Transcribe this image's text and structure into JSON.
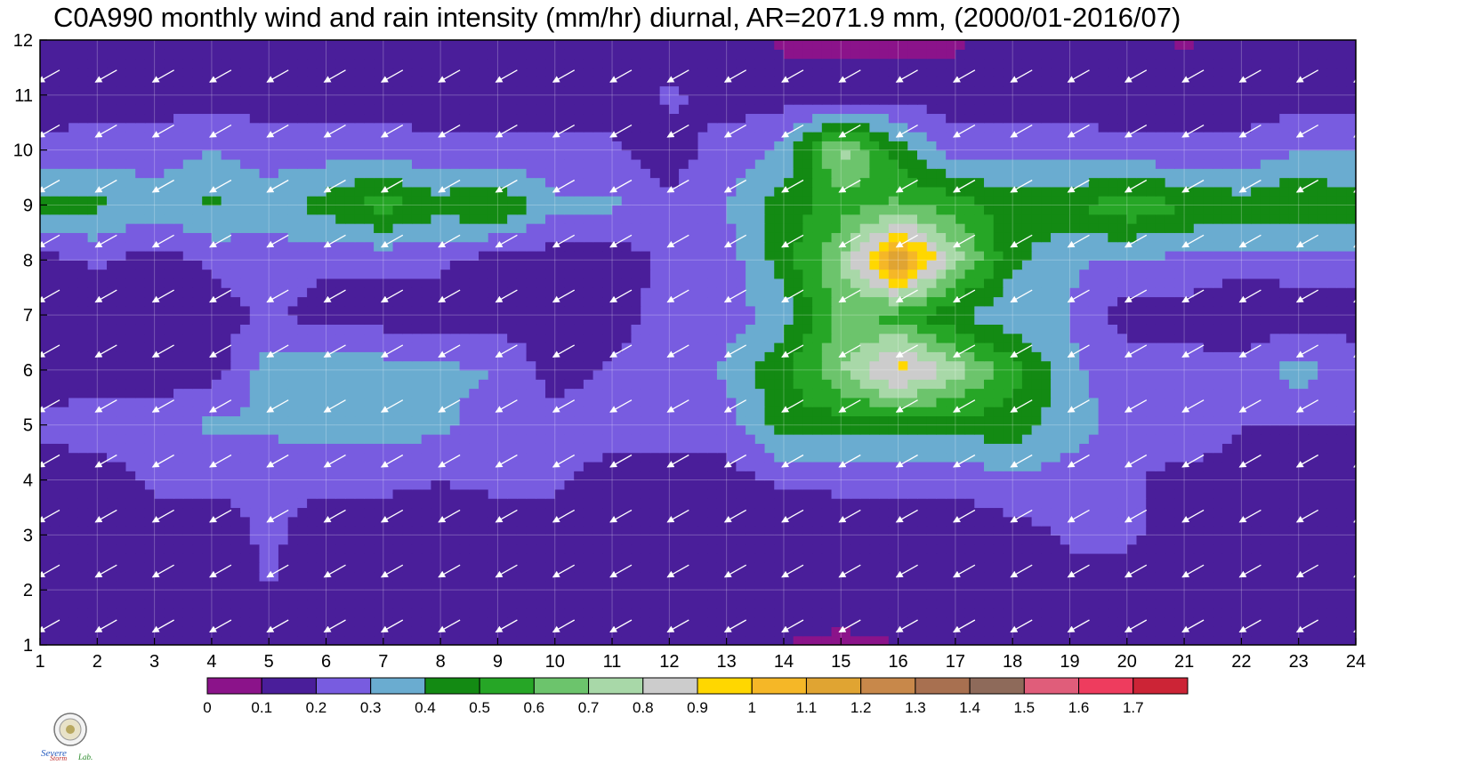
{
  "title": "C0A990 monthly wind and rain intensity (mm/hr) diurnal, AR=2071.9 mm, (2000/01-2016/07)",
  "logo_text": "Severe Storm Lab.",
  "chart_data": {
    "type": "heatmap",
    "title": "C0A990 monthly wind and rain intensity (mm/hr) diurnal, AR=2071.9 mm, (2000/01-2016/07)",
    "xlabel": "",
    "ylabel": "",
    "x": [
      1,
      2,
      3,
      4,
      5,
      6,
      7,
      8,
      9,
      10,
      11,
      12,
      13,
      14,
      15,
      16,
      17,
      18,
      19,
      20,
      21,
      22,
      23,
      24
    ],
    "y": [
      1,
      2,
      3,
      4,
      5,
      6,
      7,
      8,
      9,
      10,
      11,
      12
    ],
    "xlim": [
      1,
      24
    ],
    "ylim": [
      1,
      12
    ],
    "x_ticks": [
      "1",
      "2",
      "3",
      "4",
      "5",
      "6",
      "7",
      "8",
      "9",
      "10",
      "11",
      "12",
      "13",
      "14",
      "15",
      "16",
      "17",
      "18",
      "19",
      "20",
      "21",
      "22",
      "23",
      "24"
    ],
    "y_ticks": [
      "1",
      "2",
      "3",
      "4",
      "5",
      "6",
      "7",
      "8",
      "9",
      "10",
      "11",
      "12"
    ],
    "z": [
      [
        0.1,
        0.1,
        0.15,
        0.15,
        0.15,
        0.15,
        0.15,
        0.15,
        0.15,
        0.15,
        0.1,
        0.1,
        0.1,
        0.1,
        0.08,
        0.1,
        0.1,
        0.1,
        0.1,
        0.1,
        0.1,
        0.1,
        0.1,
        0.1
      ],
      [
        0.15,
        0.15,
        0.15,
        0.15,
        0.2,
        0.15,
        0.15,
        0.15,
        0.15,
        0.15,
        0.15,
        0.15,
        0.15,
        0.15,
        0.15,
        0.15,
        0.15,
        0.15,
        0.15,
        0.15,
        0.15,
        0.15,
        0.15,
        0.15
      ],
      [
        0.15,
        0.15,
        0.15,
        0.15,
        0.22,
        0.15,
        0.15,
        0.15,
        0.15,
        0.15,
        0.15,
        0.15,
        0.15,
        0.1,
        0.15,
        0.15,
        0.15,
        0.15,
        0.22,
        0.22,
        0.15,
        0.15,
        0.15,
        0.15
      ],
      [
        0.15,
        0.15,
        0.22,
        0.22,
        0.22,
        0.22,
        0.22,
        0.2,
        0.22,
        0.22,
        0.15,
        0.15,
        0.15,
        0.22,
        0.22,
        0.22,
        0.22,
        0.28,
        0.25,
        0.22,
        0.15,
        0.15,
        0.15,
        0.15
      ],
      [
        0.22,
        0.25,
        0.25,
        0.32,
        0.32,
        0.35,
        0.35,
        0.32,
        0.25,
        0.25,
        0.25,
        0.25,
        0.25,
        0.45,
        0.45,
        0.45,
        0.45,
        0.45,
        0.35,
        0.25,
        0.3,
        0.2,
        0.2,
        0.2
      ],
      [
        0.15,
        0.15,
        0.15,
        0.15,
        0.35,
        0.38,
        0.35,
        0.32,
        0.3,
        0.15,
        0.22,
        0.25,
        0.32,
        0.48,
        0.7,
        0.95,
        0.75,
        0.55,
        0.32,
        0.25,
        0.25,
        0.25,
        0.35,
        0.25
      ],
      [
        0.1,
        0.15,
        0.15,
        0.15,
        0.22,
        0.15,
        0.15,
        0.15,
        0.15,
        0.15,
        0.15,
        0.25,
        0.25,
        0.35,
        0.62,
        0.55,
        0.4,
        0.32,
        0.3,
        0.15,
        0.15,
        0.1,
        0.15,
        0.15
      ],
      [
        0.15,
        0.22,
        0.15,
        0.22,
        0.25,
        0.22,
        0.22,
        0.22,
        0.15,
        0.15,
        0.15,
        0.22,
        0.25,
        0.45,
        0.7,
        1.2,
        0.75,
        0.42,
        0.32,
        0.28,
        0.28,
        0.25,
        0.25,
        0.25
      ],
      [
        0.45,
        0.42,
        0.35,
        0.42,
        0.35,
        0.45,
        0.55,
        0.45,
        0.5,
        0.32,
        0.32,
        0.22,
        0.3,
        0.45,
        0.55,
        0.62,
        0.55,
        0.45,
        0.48,
        0.58,
        0.5,
        0.45,
        0.5,
        0.45
      ],
      [
        0.22,
        0.25,
        0.25,
        0.3,
        0.25,
        0.25,
        0.25,
        0.22,
        0.22,
        0.22,
        0.22,
        0.15,
        0.25,
        0.32,
        0.75,
        0.45,
        0.25,
        0.25,
        0.25,
        0.22,
        0.22,
        0.22,
        0.3,
        0.3
      ],
      [
        0.15,
        0.15,
        0.15,
        0.15,
        0.15,
        0.15,
        0.15,
        0.15,
        0.15,
        0.15,
        0.15,
        0.22,
        0.15,
        0.15,
        0.15,
        0.15,
        0.15,
        0.15,
        0.15,
        0.15,
        0.15,
        0.15,
        0.15,
        0.15
      ],
      [
        0.15,
        0.15,
        0.15,
        0.15,
        0.15,
        0.15,
        0.15,
        0.15,
        0.15,
        0.15,
        0.15,
        0.15,
        0.15,
        0.08,
        0.08,
        0.08,
        0.08,
        0.15,
        0.15,
        0.15,
        0.08,
        0.15,
        0.15,
        0.15
      ]
    ],
    "wind_vector": {
      "u": -0.8,
      "v": -0.45
    },
    "colorbar": {
      "levels": [
        "0",
        "0.1",
        "0.2",
        "0.3",
        "0.4",
        "0.5",
        "0.6",
        "0.7",
        "0.8",
        "0.9",
        "1",
        "1.1",
        "1.2",
        "1.3",
        "1.4",
        "1.5",
        "1.6",
        "1.7"
      ],
      "colors": [
        "#8b138a",
        "#4a1e9a",
        "#785ce0",
        "#6aacd0",
        "#138a13",
        "#26a626",
        "#6cc46c",
        "#a8d8a8",
        "#cccccc",
        "#ffd700",
        "#f5b727",
        "#e0a432",
        "#c8884a",
        "#a87050",
        "#8e6a5a",
        "#e05d7a",
        "#ee3c5e",
        "#cc2436"
      ]
    },
    "contour_line_color": "#f0b030",
    "grid": true
  }
}
